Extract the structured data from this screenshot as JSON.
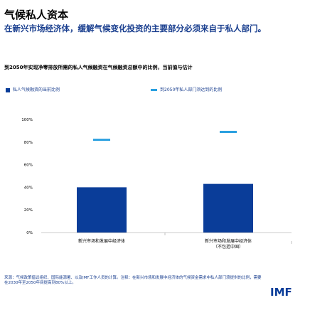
{
  "header": {
    "title": "气候私人资本",
    "subtitle": "在新兴市场经济体，缓解气候变化投资的主要部分必须来自于私人部门。",
    "note": "到2050年实现净零排放所需的私人气候融资在气候融资总额中的比例，当前值与估计"
  },
  "chart_data": {
    "type": "bar",
    "categories": [
      "新兴市场和发展中经济体",
      "新兴市场和发展中经济体（不包括中国）"
    ],
    "series": [
      {
        "name": "私人气候融资的当前比例",
        "kind": "bar",
        "values": [
          40,
          43
        ]
      },
      {
        "name": "到2050年私人部门须达到的比例",
        "kind": "marker",
        "values": [
          82,
          89
        ]
      }
    ],
    "ylim": [
      0,
      100
    ],
    "yticks": [
      "0%",
      "20%",
      "40%",
      "60%",
      "80%",
      "100%"
    ],
    "ytick_values": [
      0,
      20,
      40,
      60,
      80,
      100
    ],
    "legend": "top",
    "colors": {
      "bar": "#0a3d99",
      "marker": "#2aa0e0"
    }
  },
  "footer": {
    "sources": "来源：气候政策倡议组织、国际能源署、以及IMF工作人员的计算。注释：在新兴市场和发展中经济体的气候资金需求中私人部门须提供的比例，需要在2030年至2050年间提高到80%以上。",
    "logo": "IMF"
  }
}
